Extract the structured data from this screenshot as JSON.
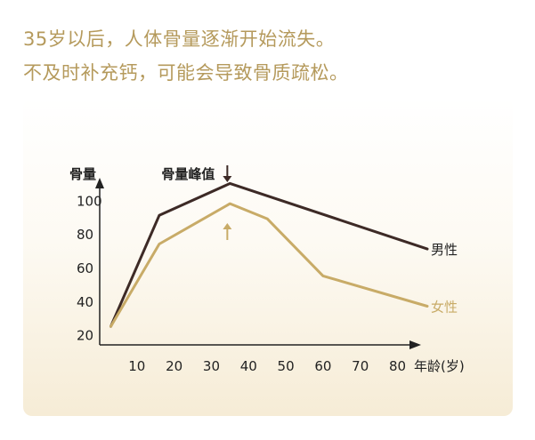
{
  "headline": {
    "line1": "35岁以后，人体骨量逐渐开始流失。",
    "line2": "不及时补充钙，可能会导致骨质疏松。"
  },
  "colors": {
    "headline": "#b59a5c",
    "male": "#3d2a26",
    "female": "#c8ab67",
    "axis": "#222222"
  },
  "chart_data": {
    "type": "line",
    "ylabel": "骨量",
    "xlabel": "年龄(岁)",
    "xticks": [
      10,
      20,
      30,
      40,
      50,
      60,
      70,
      80
    ],
    "yticks": [
      20,
      40,
      60,
      80,
      100
    ],
    "xlim": [
      0,
      88
    ],
    "ylim": [
      14,
      116
    ],
    "grid": false,
    "annotation": {
      "text": "骨量峰值",
      "x": 35
    },
    "series": [
      {
        "name": "男性",
        "x": [
          3,
          16,
          35,
          88
        ],
        "y": [
          25,
          91,
          110,
          71
        ]
      },
      {
        "name": "女性",
        "x": [
          3,
          16,
          35,
          45,
          60,
          88
        ],
        "y": [
          25,
          74,
          98,
          89,
          55,
          37
        ]
      }
    ]
  }
}
